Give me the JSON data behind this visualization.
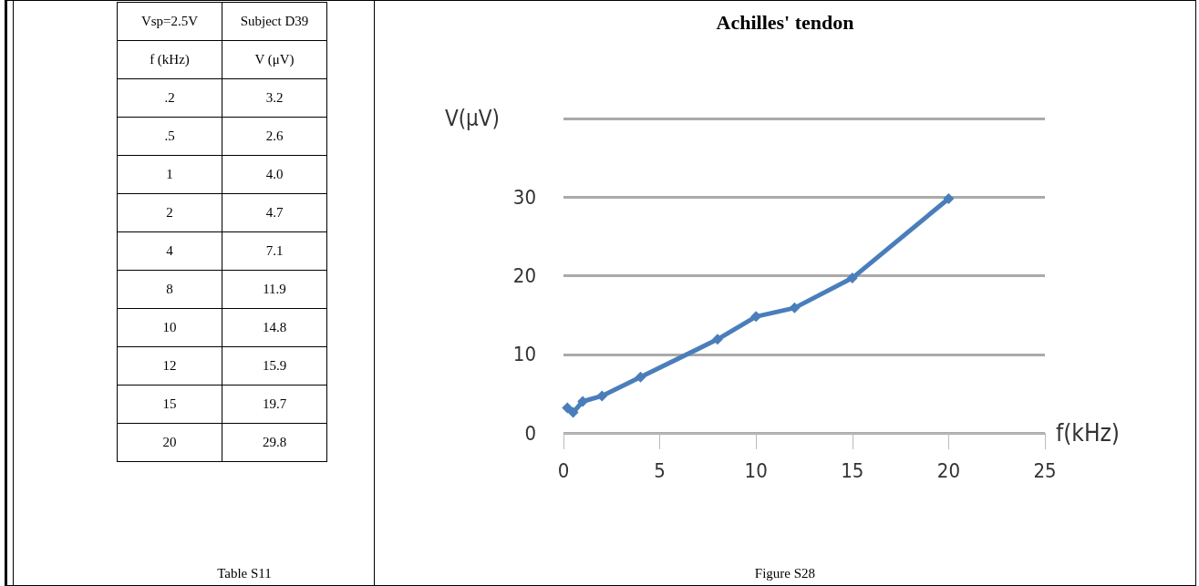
{
  "chart_data": [
    {
      "type": "other",
      "annotations": [
        "Vsp=2.5V",
        "Subject D39",
        "f (kHz)",
        "V (μV)",
        ".2",
        "3.2",
        ".5",
        "2.6",
        "1",
        "4.0",
        "2",
        "4.7",
        "4",
        "7.1",
        "8",
        "11.9",
        "10",
        "14.8",
        "12",
        "15.9",
        "15",
        "19.7",
        "20",
        "29.8",
        "Table S11"
      ]
    },
    {
      "type": "line",
      "title": "Achilles' tendon",
      "xlabel": "f(kHz)",
      "ylabel": "V(μV)",
      "annotations": [
        "Figure S28"
      ],
      "x": [
        0.2,
        0.5,
        1,
        2,
        4,
        8,
        10,
        12,
        15,
        20
      ],
      "series": [
        {
          "color": "#4a7ebb",
          "values": [
            3.2,
            2.6,
            4.0,
            4.7,
            7.1,
            11.9,
            14.8,
            15.9,
            19.7,
            29.8
          ]
        }
      ],
      "xlim": [
        0,
        25
      ],
      "xticks": [
        0,
        5,
        10,
        15,
        20,
        25
      ],
      "ylim": [
        0,
        40
      ],
      "yticks": [
        0,
        10,
        20,
        30,
        {
          "value": 40,
          "label": null
        }
      ],
      "grid": "y",
      "marker": "diamond",
      "line_style": "solid"
    }
  ]
}
